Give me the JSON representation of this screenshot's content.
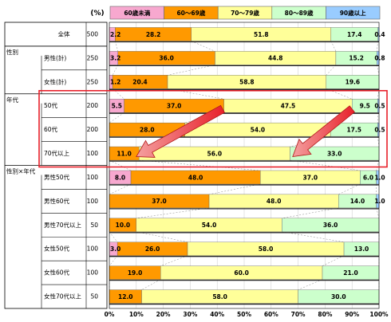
{
  "chart_data": {
    "type": "bar",
    "stacked": true,
    "orientation": "horizontal",
    "unit_label": "(%)",
    "legend": [
      "60歳未満",
      "60～69歳",
      "70～79歳",
      "80～89歳",
      "90歳以上"
    ],
    "colors": [
      "#f7a8cf",
      "#ff9900",
      "#ffff99",
      "#ccffcc",
      "#99ccff"
    ],
    "xlim": [
      0,
      100
    ],
    "xticks": [
      "0%",
      "10%",
      "20%",
      "30%",
      "40%",
      "50%",
      "60%",
      "70%",
      "80%",
      "90%",
      "100%"
    ],
    "groups": [
      {
        "label": "",
        "rows": [
          0
        ]
      },
      {
        "label": "性別",
        "rows": [
          1,
          2
        ]
      },
      {
        "label": "年代",
        "rows": [
          3,
          4,
          5
        ]
      },
      {
        "label": "性別×年代",
        "rows": [
          6,
          7,
          8,
          9,
          10,
          11
        ]
      }
    ],
    "rows": [
      {
        "label": "全体",
        "n": "500",
        "values": [
          2.2,
          28.2,
          51.8,
          17.4,
          0.4
        ],
        "value_labels": [
          "2.2",
          "28.2",
          "51.8",
          "17.4",
          "0.4"
        ]
      },
      {
        "label": "男性(計)",
        "n": "250",
        "values": [
          3.2,
          36.0,
          44.8,
          15.2,
          0.8
        ],
        "value_labels": [
          "3.2",
          "36.0",
          "44.8",
          "15.2",
          "0.8"
        ]
      },
      {
        "label": "女性(計)",
        "n": "250",
        "values": [
          1.2,
          20.4,
          58.8,
          19.6,
          0.0
        ],
        "value_labels": [
          "1.2",
          "20.4",
          "58.8",
          "19.6",
          ""
        ]
      },
      {
        "label": "50代",
        "n": "200",
        "values": [
          5.5,
          37.0,
          47.5,
          9.5,
          0.5
        ],
        "value_labels": [
          "5.5",
          "37.0",
          "47.5",
          "9.5",
          "0.5"
        ]
      },
      {
        "label": "60代",
        "n": "200",
        "values": [
          0.0,
          28.0,
          54.0,
          17.5,
          0.5
        ],
        "value_labels": [
          "",
          "28.0",
          "54.0",
          "17.5",
          "0.5"
        ]
      },
      {
        "label": "70代以上",
        "n": "100",
        "values": [
          0.0,
          11.0,
          56.0,
          33.0,
          0.0
        ],
        "value_labels": [
          "",
          "11.0",
          "56.0",
          "33.0",
          ""
        ]
      },
      {
        "label": "男性50代",
        "n": "100",
        "values": [
          8.0,
          48.0,
          37.0,
          6.0,
          1.0
        ],
        "value_labels": [
          "8.0",
          "48.0",
          "37.0",
          "6.0",
          "1.0"
        ]
      },
      {
        "label": "男性60代",
        "n": "100",
        "values": [
          0.0,
          37.0,
          48.0,
          14.0,
          1.0
        ],
        "value_labels": [
          "",
          "37.0",
          "48.0",
          "14.0",
          "1.0"
        ]
      },
      {
        "label": "男性70代以上",
        "n": "50",
        "values": [
          0.0,
          10.0,
          54.0,
          36.0,
          0.0
        ],
        "value_labels": [
          "",
          "10.0",
          "54.0",
          "36.0",
          ""
        ]
      },
      {
        "label": "女性50代",
        "n": "100",
        "values": [
          3.0,
          26.0,
          58.0,
          13.0,
          0.0
        ],
        "value_labels": [
          "3.0",
          "26.0",
          "58.0",
          "13.0",
          ""
        ]
      },
      {
        "label": "女性60代",
        "n": "100",
        "values": [
          0.0,
          19.0,
          60.0,
          21.0,
          0.0
        ],
        "value_labels": [
          "",
          "19.0",
          "60.0",
          "21.0",
          ""
        ]
      },
      {
        "label": "女性70代以上",
        "n": "50",
        "values": [
          0.0,
          12.0,
          58.0,
          30.0,
          0.0
        ],
        "value_labels": [
          "",
          "12.0",
          "58.0",
          "30.0",
          ""
        ]
      }
    ],
    "highlight": {
      "group": "年代",
      "color": "#e8202a"
    },
    "annotations": [
      {
        "type": "arrow",
        "from_row": 3,
        "from_x": 42,
        "to_row": 5,
        "to_x": 10
      },
      {
        "type": "arrow",
        "from_row": 3,
        "from_x": 90,
        "to_row": 5,
        "to_x": 68
      }
    ]
  }
}
